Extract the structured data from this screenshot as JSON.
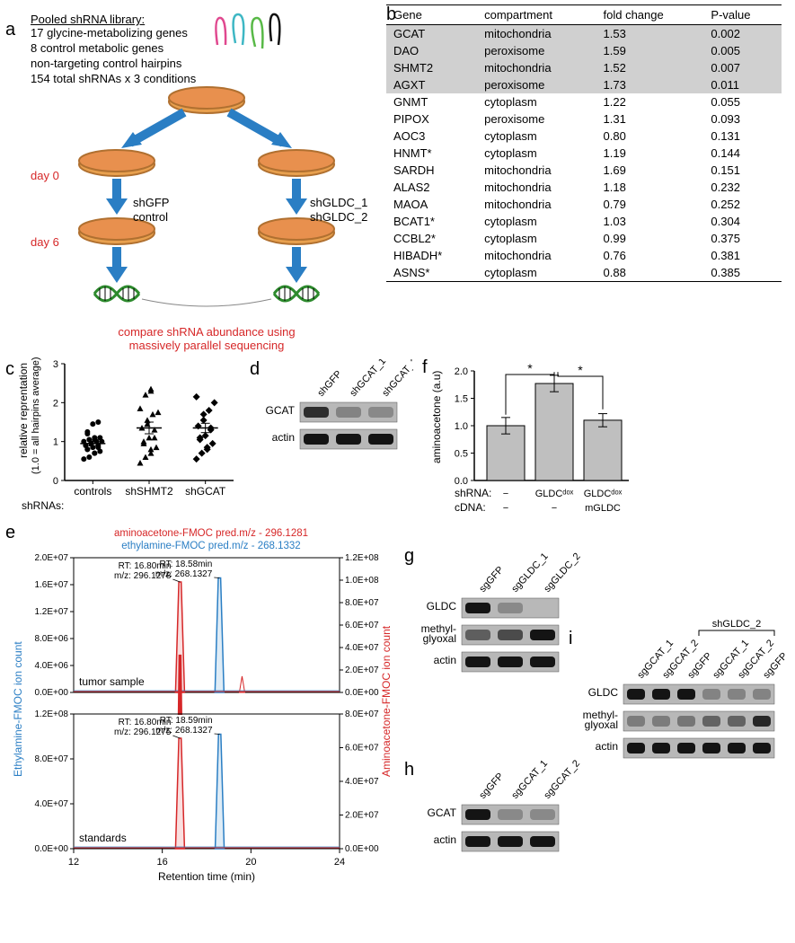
{
  "panelLabels": {
    "a": "a",
    "b": "b",
    "c": "c",
    "d": "d",
    "e": "e",
    "f": "f",
    "g": "g",
    "h": "h",
    "i": "i"
  },
  "panelA": {
    "libraryTitle": "Pooled shRNA library:",
    "libraryItems": [
      "17 glycine-metabolizing genes",
      "8 control metabolic genes",
      "non-targeting control hairpins",
      "154 total shRNAs x 3 conditions"
    ],
    "day0": "day 0",
    "day6": "day 6",
    "leftLabel1": "shGFP",
    "leftLabel2": "control",
    "rightLabel1": "shGLDC_1",
    "rightLabel2": "shGLDC_2",
    "bottomText1": "compare shRNA abundance using",
    "bottomText2": "massively parallel sequencing",
    "hairpinColors": [
      "#e0488f",
      "#3eb7c4",
      "#58b947",
      "#111111"
    ]
  },
  "panelB": {
    "columns": [
      "Gene",
      "compartment",
      "fold change",
      "P-value"
    ],
    "rows": [
      {
        "gene": "GCAT",
        "comp": "mitochondria",
        "fc": "1.53",
        "p": "0.002",
        "hl": true
      },
      {
        "gene": "DAO",
        "comp": "peroxisome",
        "fc": "1.59",
        "p": "0.005",
        "hl": true
      },
      {
        "gene": "SHMT2",
        "comp": "mitochondria",
        "fc": "1.52",
        "p": "0.007",
        "hl": true
      },
      {
        "gene": "AGXT",
        "comp": "peroxisome",
        "fc": "1.73",
        "p": "0.011",
        "hl": true
      },
      {
        "gene": "GNMT",
        "comp": "cytoplasm",
        "fc": "1.22",
        "p": "0.055"
      },
      {
        "gene": "PIPOX",
        "comp": "peroxisome",
        "fc": "1.31",
        "p": "0.093"
      },
      {
        "gene": "AOC3",
        "comp": "cytoplasm",
        "fc": "0.80",
        "p": "0.131"
      },
      {
        "gene": "HNMT*",
        "comp": "cytoplasm",
        "fc": "1.19",
        "p": "0.144"
      },
      {
        "gene": "SARDH",
        "comp": "mitochondria",
        "fc": "1.69",
        "p": "0.151"
      },
      {
        "gene": "ALAS2",
        "comp": "mitochondria",
        "fc": "1.18",
        "p": "0.232"
      },
      {
        "gene": "MAOA",
        "comp": "mitochondria",
        "fc": "0.79",
        "p": "0.252"
      },
      {
        "gene": "BCAT1*",
        "comp": "cytoplasm",
        "fc": "1.03",
        "p": "0.304"
      },
      {
        "gene": "CCBL2*",
        "comp": "cytoplasm",
        "fc": "0.99",
        "p": "0.375"
      },
      {
        "gene": "HIBADH*",
        "comp": "mitochondria",
        "fc": "0.76",
        "p": "0.381"
      },
      {
        "gene": "ASNS*",
        "comp": "cytoplasm",
        "fc": "0.88",
        "p": "0.385"
      }
    ]
  },
  "panelC": {
    "yLabel1": "relative reprentation",
    "yLabel2": "(1.0 = all hairpins average)",
    "xLabel": "shRNAs:",
    "categories": [
      "controls",
      "shSHMT2",
      "shGCAT"
    ],
    "yTicks": [
      0,
      1,
      2,
      3
    ],
    "means": [
      0.95,
      1.35,
      1.35
    ],
    "sem": [
      0.06,
      0.15,
      0.12
    ],
    "points": {
      "controls": [
        0.55,
        0.6,
        0.7,
        0.7,
        0.75,
        0.8,
        0.8,
        0.85,
        0.85,
        0.9,
        0.9,
        0.95,
        0.95,
        1.0,
        1.0,
        1.0,
        1.05,
        1.05,
        1.1,
        1.1,
        1.2,
        1.25,
        1.45,
        1.5
      ],
      "shSHMT2": [
        0.45,
        0.6,
        0.7,
        0.8,
        0.85,
        0.95,
        1.0,
        1.1,
        1.1,
        1.3,
        1.35,
        1.45,
        1.55,
        1.7,
        1.75,
        1.85,
        2.2,
        2.3,
        2.35
      ],
      "shGCAT": [
        0.55,
        0.7,
        0.8,
        0.85,
        0.95,
        1.05,
        1.1,
        1.15,
        1.3,
        1.35,
        1.4,
        1.55,
        1.7,
        1.8,
        2.0,
        2.15
      ]
    },
    "markers": {
      "controls": "circle",
      "shSHMT2": "triangle",
      "shGCAT": "diamond"
    },
    "ylim": [
      0,
      3
    ]
  },
  "panelD": {
    "laneLabels": [
      "shGFP",
      "shGCAT_1",
      "shGCAT_2"
    ],
    "rows": [
      "GCAT",
      "actin"
    ],
    "intensity": {
      "GCAT": [
        0.8,
        0.1,
        0.05
      ],
      "actin": [
        1,
        1,
        1
      ]
    }
  },
  "panelE": {
    "title1": "aminoacetone-FMOC pred.m/z - 296.1281",
    "title2": "ethylamine-FMOC pred.m/z - 268.1332",
    "title1Color": "#d62728",
    "title2Color": "#2a7ec4",
    "yLabelLeft": "Ethylamine-FMOC ion count",
    "yLabelRight": "Aminoacetone-FMOC ion count",
    "xLabel": "Retention time (min)",
    "topPlot": {
      "name": "tumor sample",
      "ann1": "RT: 16.80min\nm/z: 296.1278",
      "ann2": "RT: 18.58min\nm/z: 268.1327",
      "leftYTicks": [
        "0.0E+00",
        "4.0E+06",
        "8.0E+06",
        "1.2E+07",
        "1.6E+07",
        "2.0E+07"
      ],
      "rightYTicks": [
        "0.0E+00",
        "2.0E+07",
        "4.0E+07",
        "6.0E+07",
        "8.0E+07",
        "1.0E+08",
        "1.2E+08"
      ],
      "redPeak": {
        "rt": 16.8,
        "h": 16000000.0
      },
      "bluePeak": {
        "rt": 18.58,
        "h": 105000000.0
      },
      "smallRedPeak": {
        "rt": 19.6,
        "h": 2500000.0
      }
    },
    "bottomPlot": {
      "name": "standards",
      "ann1": "RT: 16.80min\nm/z: 296.1275",
      "ann2": "RT: 18.59min\nm/z: 268.1327",
      "leftYTicks": [
        "0.0E+00",
        "4.0E+07",
        "8.0E+07",
        "1.2E+08"
      ],
      "rightYTicks": [
        "0.0E+00",
        "2.0E+07",
        "4.0E+07",
        "6.0E+07",
        "8.0E+07"
      ],
      "redPeak": {
        "rt": 16.8,
        "h": 115000000.0
      },
      "bluePeak": {
        "rt": 18.59,
        "h": 75000000.0
      }
    },
    "xlim": [
      12,
      24
    ],
    "xTicks": [
      12,
      16,
      20,
      24
    ],
    "colors": {
      "red": "#d62728",
      "blue": "#2a7ec4"
    }
  },
  "panelF": {
    "yLabel": "aminoacetone (a.u)",
    "categories": [
      "",
      "",
      ""
    ],
    "shRNARow": [
      "−",
      "GLDCᵈᵒˣ",
      "GLDCᵈᵒˣ"
    ],
    "cDNARow": [
      "−",
      "−",
      "mGLDC"
    ],
    "shRNALabel": "shRNA:",
    "cDNALabel": "cDNA:",
    "values": [
      1.0,
      1.77,
      1.1
    ],
    "errors": [
      0.15,
      0.15,
      0.12
    ],
    "ylim": [
      0,
      2.0
    ],
    "yTicks": [
      0,
      0.5,
      1.0,
      1.5,
      2.0
    ],
    "star": "*",
    "barColor": "#bfbfbf",
    "barBorder": "#000000"
  },
  "panelG": {
    "laneLabels": [
      "sgGFP",
      "sgGLDC_1",
      "sgGLDC_2"
    ],
    "rows": [
      "GLDC",
      "methyl-\nglyoxal",
      "actin"
    ],
    "intensity": {
      "GLDC": [
        1,
        0.05,
        0.02
      ],
      "methyl-\nglyoxal": [
        0.4,
        0.55,
        1.0
      ],
      "actin": [
        1,
        1,
        1
      ]
    }
  },
  "panelH": {
    "laneLabels": [
      "sgGFP",
      "sgGCAT_1",
      "sgGCAT_2"
    ],
    "rows": [
      "GCAT",
      "actin"
    ],
    "intensity": {
      "GCAT": [
        1,
        0.05,
        0.05
      ],
      "actin": [
        1,
        1,
        1
      ]
    }
  },
  "panelI": {
    "bracketLabel": "shGLDC_2",
    "laneLabels": [
      "sgGCAT_1",
      "sgGCAT_2",
      "sgGFP",
      "sgGCAT_1",
      "sgGCAT_2",
      "sgGFP"
    ],
    "rows": [
      "GLDC",
      "methyl-\nglyoxal",
      "actin"
    ],
    "intensity": {
      "GLDC": [
        1,
        1,
        1,
        0.1,
        0.1,
        0.1
      ],
      "methyl-\nglyoxal": [
        0.15,
        0.15,
        0.2,
        0.35,
        0.35,
        0.85
      ],
      "actin": [
        1,
        1,
        1,
        1,
        1,
        1
      ]
    }
  }
}
